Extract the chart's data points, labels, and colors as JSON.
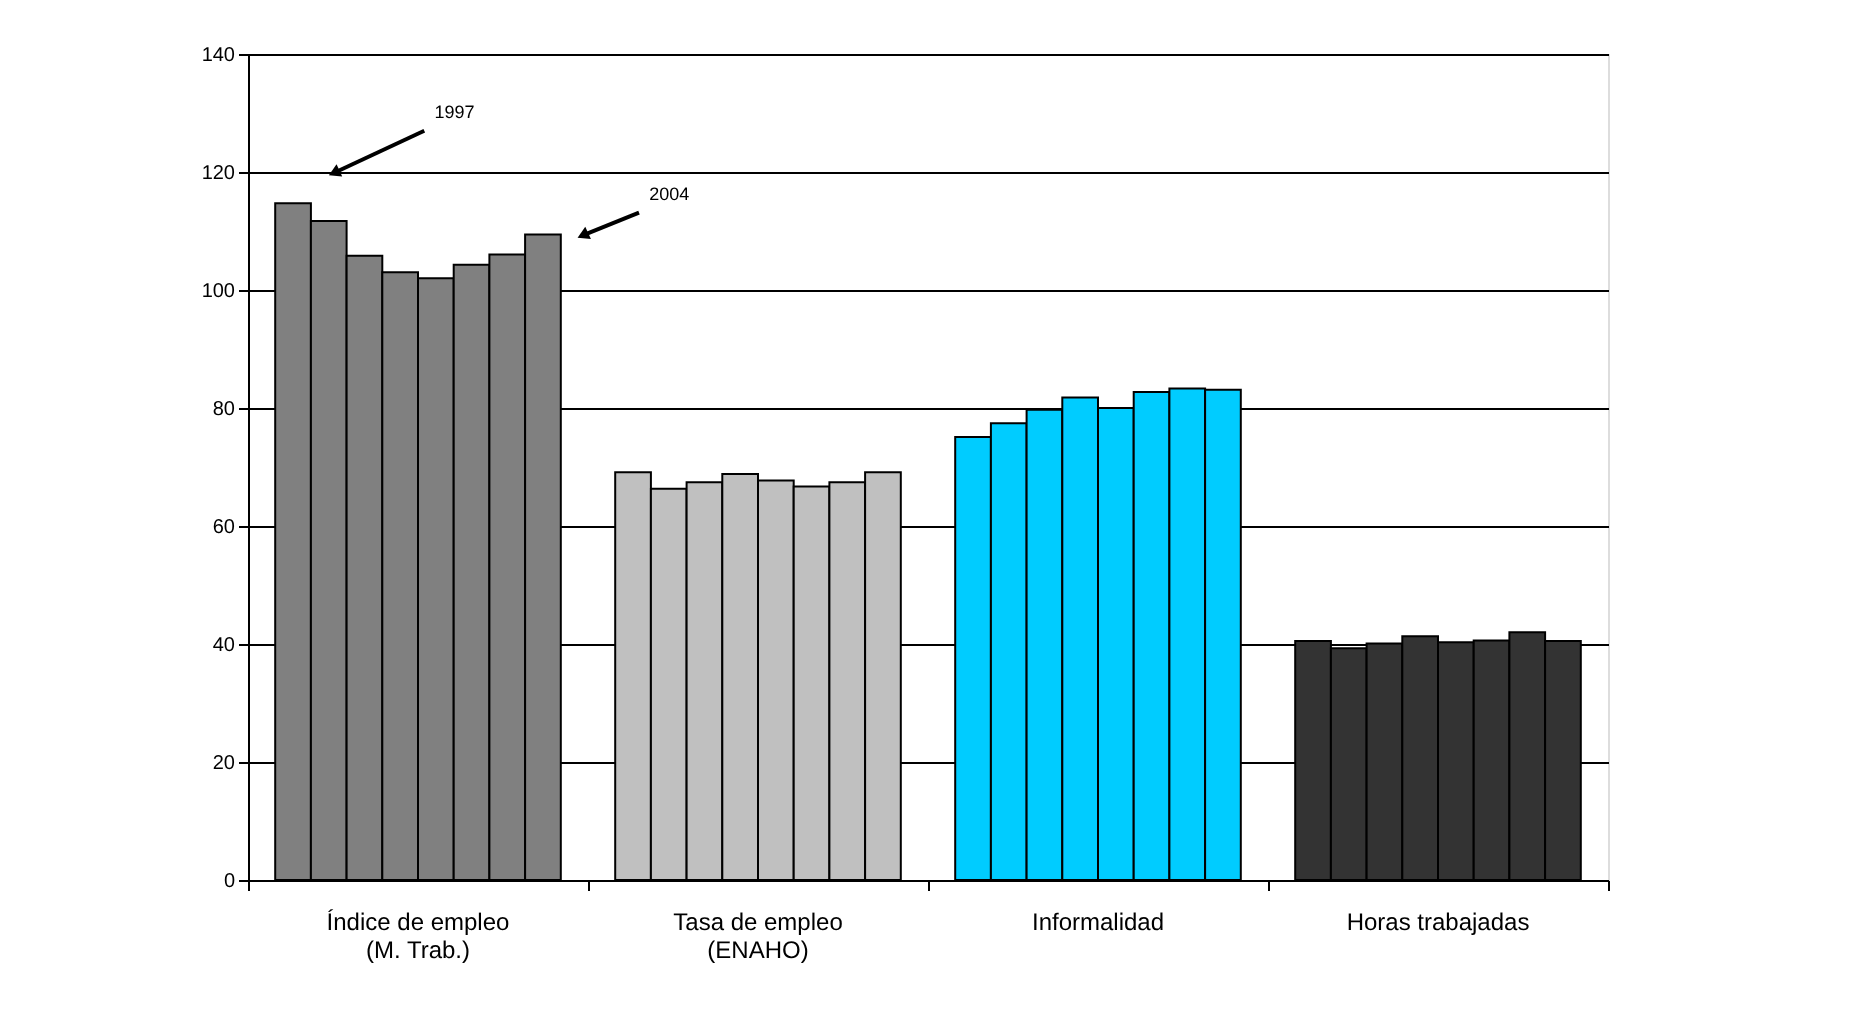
{
  "chart_data": {
    "type": "bar",
    "categories": [
      "Índice de empleo\n(M. Trab.)",
      "Tasa de empleo\n(ENAHO)",
      "Informalidad",
      "Horas trabajadas"
    ],
    "series": [
      {
        "colors": [
          "#808080",
          "#c0c0c0",
          "#00ccff",
          "#333333"
        ],
        "values": [
          114.7,
          69.1,
          75.1,
          40.5
        ]
      },
      {
        "colors": [
          "#808080",
          "#c0c0c0",
          "#00ccff",
          "#333333"
        ],
        "values": [
          111.7,
          66.3,
          77.4,
          39.3
        ]
      },
      {
        "colors": [
          "#808080",
          "#c0c0c0",
          "#00ccff",
          "#333333"
        ],
        "values": [
          105.8,
          67.4,
          79.7,
          40.1
        ]
      },
      {
        "colors": [
          "#808080",
          "#c0c0c0",
          "#00ccff",
          "#333333"
        ],
        "values": [
          103.0,
          68.8,
          81.8,
          41.3
        ]
      },
      {
        "colors": [
          "#808080",
          "#c0c0c0",
          "#00ccff",
          "#333333"
        ],
        "values": [
          102.0,
          67.7,
          80.0,
          40.3
        ]
      },
      {
        "colors": [
          "#808080",
          "#c0c0c0",
          "#00ccff",
          "#333333"
        ],
        "values": [
          104.3,
          66.7,
          82.7,
          40.6
        ]
      },
      {
        "colors": [
          "#808080",
          "#c0c0c0",
          "#00ccff",
          "#333333"
        ],
        "values": [
          106.0,
          67.4,
          83.3,
          42.0
        ]
      },
      {
        "colors": [
          "#808080",
          "#c0c0c0",
          "#00ccff",
          "#333333"
        ],
        "values": [
          109.4,
          69.1,
          83.1,
          40.5
        ]
      }
    ],
    "ylim": [
      0,
      140
    ],
    "yticks": [
      0,
      20,
      40,
      60,
      80,
      100,
      120,
      140
    ],
    "grid": "y",
    "annotations": [
      "1997",
      "2004"
    ]
  }
}
